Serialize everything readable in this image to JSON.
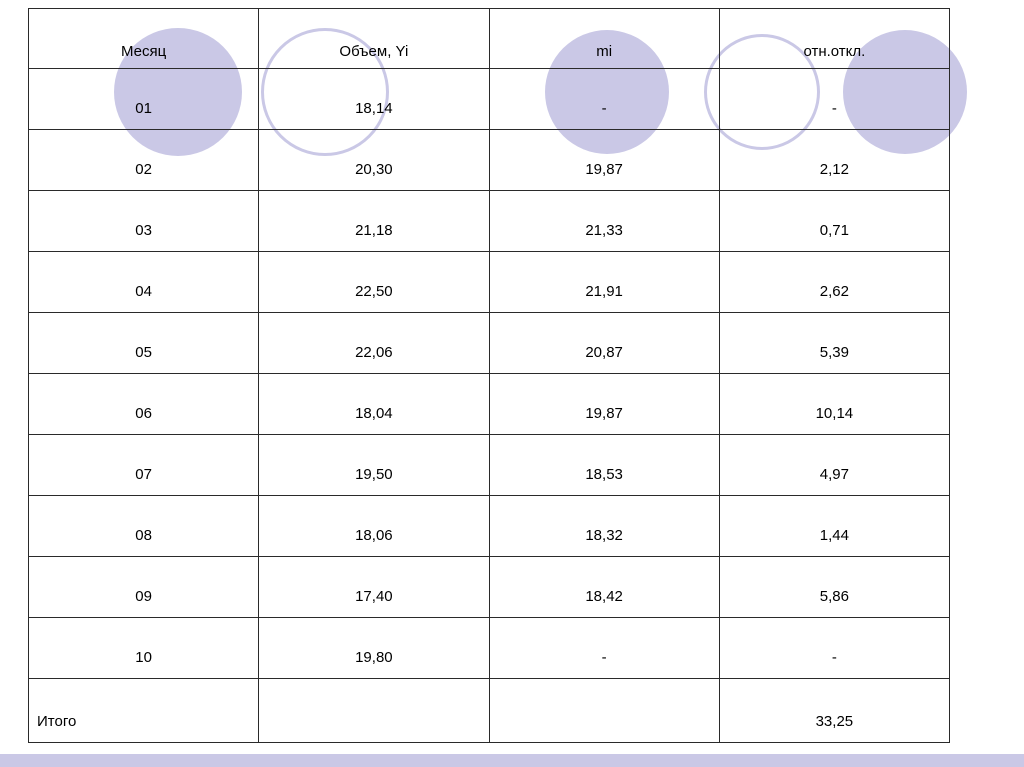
{
  "page": {
    "accent_color": "#cac8e6",
    "background_color": "#ffffff"
  },
  "table": {
    "headers": [
      "Месяц",
      "Объем, Yi",
      "mi",
      "отн.откл."
    ],
    "rows": [
      [
        "01",
        "18,14",
        "-",
        "-"
      ],
      [
        "02",
        "20,30",
        "19,87",
        "2,12"
      ],
      [
        "03",
        "21,18",
        "21,33",
        "0,71"
      ],
      [
        "04",
        "22,50",
        "21,91",
        "2,62"
      ],
      [
        "05",
        "22,06",
        "20,87",
        "5,39"
      ],
      [
        "06",
        "18,04",
        "19,87",
        "10,14"
      ],
      [
        "07",
        "19,50",
        "18,53",
        "4,97"
      ],
      [
        "08",
        "18,06",
        "18,32",
        "1,44"
      ],
      [
        "09",
        "17,40",
        "18,42",
        "5,86"
      ],
      [
        "10",
        "19,80",
        "-",
        "-"
      ],
      [
        "Итого",
        "",
        "",
        "33,25"
      ]
    ],
    "total_row_label": "Итого",
    "total_value": "33,25"
  }
}
